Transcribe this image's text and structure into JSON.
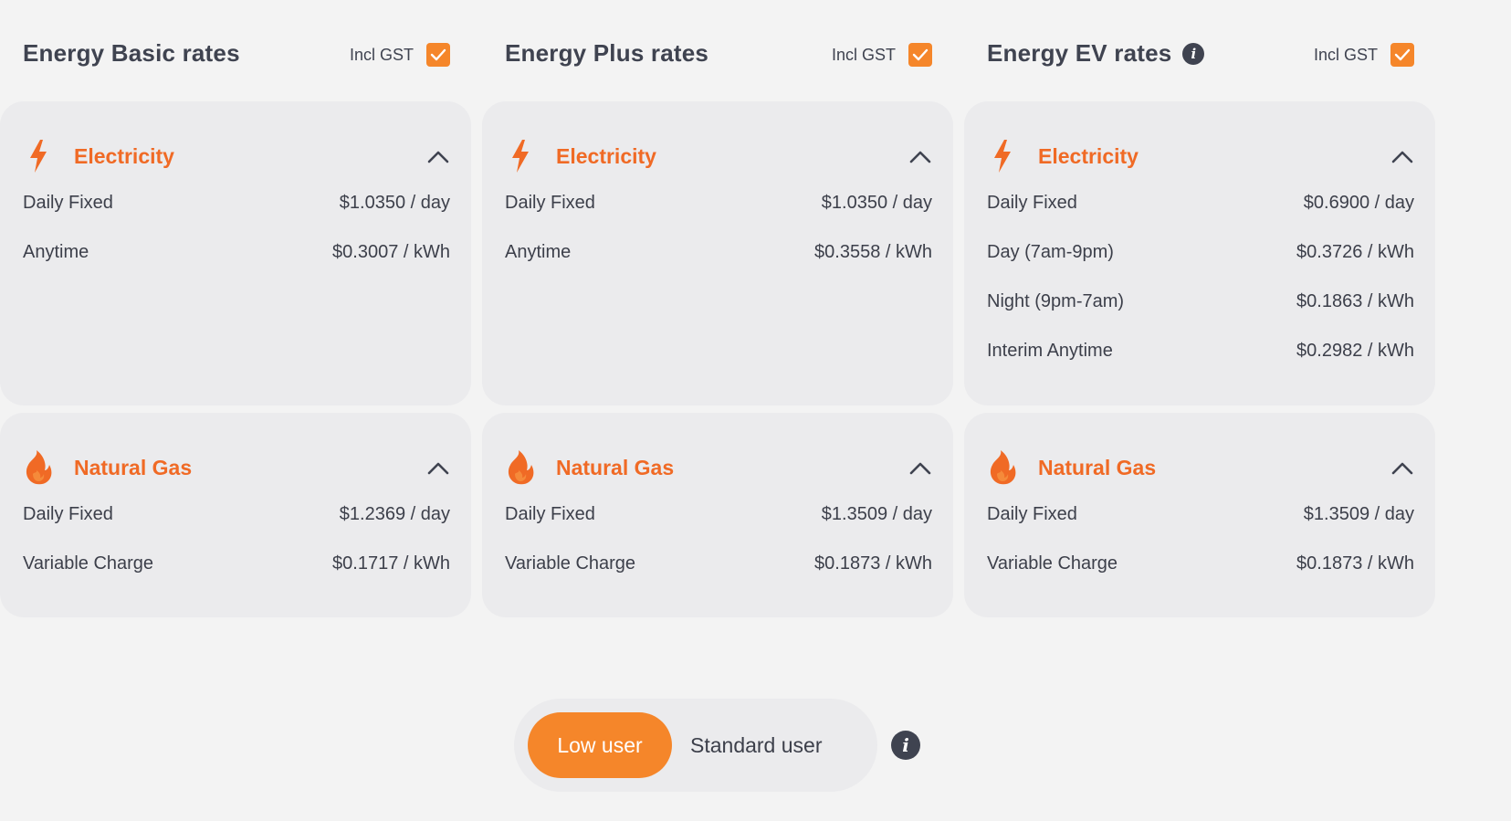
{
  "colors": {
    "accent": "#f5862a",
    "title_orange": "#f06a25",
    "card_bg": "#ebebed",
    "page_bg": "#f3f3f3",
    "text_dark": "#3f4350"
  },
  "plans": [
    {
      "title": "Energy Basic rates",
      "has_info": false,
      "gst_label": "Incl GST",
      "gst_checked": true,
      "electricity": {
        "title": "Electricity",
        "icon": "lightning-icon",
        "rows": [
          {
            "label": "Daily Fixed",
            "value": "$1.0350 / day"
          },
          {
            "label": "Anytime",
            "value": "$0.3007 / kWh"
          }
        ]
      },
      "gas": {
        "title": "Natural Gas",
        "icon": "flame-icon",
        "rows": [
          {
            "label": "Daily Fixed",
            "value": "$1.2369 / day"
          },
          {
            "label": "Variable Charge",
            "value": "$0.1717 / kWh"
          }
        ]
      }
    },
    {
      "title": "Energy Plus rates",
      "has_info": false,
      "gst_label": "Incl GST",
      "gst_checked": true,
      "electricity": {
        "title": "Electricity",
        "icon": "lightning-icon",
        "rows": [
          {
            "label": "Daily Fixed",
            "value": "$1.0350 / day"
          },
          {
            "label": "Anytime",
            "value": "$0.3558 / kWh"
          }
        ]
      },
      "gas": {
        "title": "Natural Gas",
        "icon": "flame-icon",
        "rows": [
          {
            "label": "Daily Fixed",
            "value": "$1.3509 / day"
          },
          {
            "label": "Variable Charge",
            "value": "$0.1873 / kWh"
          }
        ]
      }
    },
    {
      "title": "Energy EV rates",
      "has_info": true,
      "gst_label": "Incl GST",
      "gst_checked": true,
      "electricity": {
        "title": "Electricity",
        "icon": "lightning-icon",
        "rows": [
          {
            "label": "Daily Fixed",
            "value": "$0.6900 / day"
          },
          {
            "label": "Day (7am-9pm)",
            "value": "$0.3726 / kWh"
          },
          {
            "label": "Night (9pm-7am)",
            "value": "$0.1863 / kWh"
          },
          {
            "label": "Interim Anytime",
            "value": "$0.2982 / kWh"
          }
        ]
      },
      "gas": {
        "title": "Natural Gas",
        "icon": "flame-icon",
        "rows": [
          {
            "label": "Daily Fixed",
            "value": "$1.3509 / day"
          },
          {
            "label": "Variable Charge",
            "value": "$0.1873 / kWh"
          }
        ]
      }
    }
  ],
  "user_toggle": {
    "options": [
      "Low user",
      "Standard user"
    ],
    "selected": "Low user"
  }
}
